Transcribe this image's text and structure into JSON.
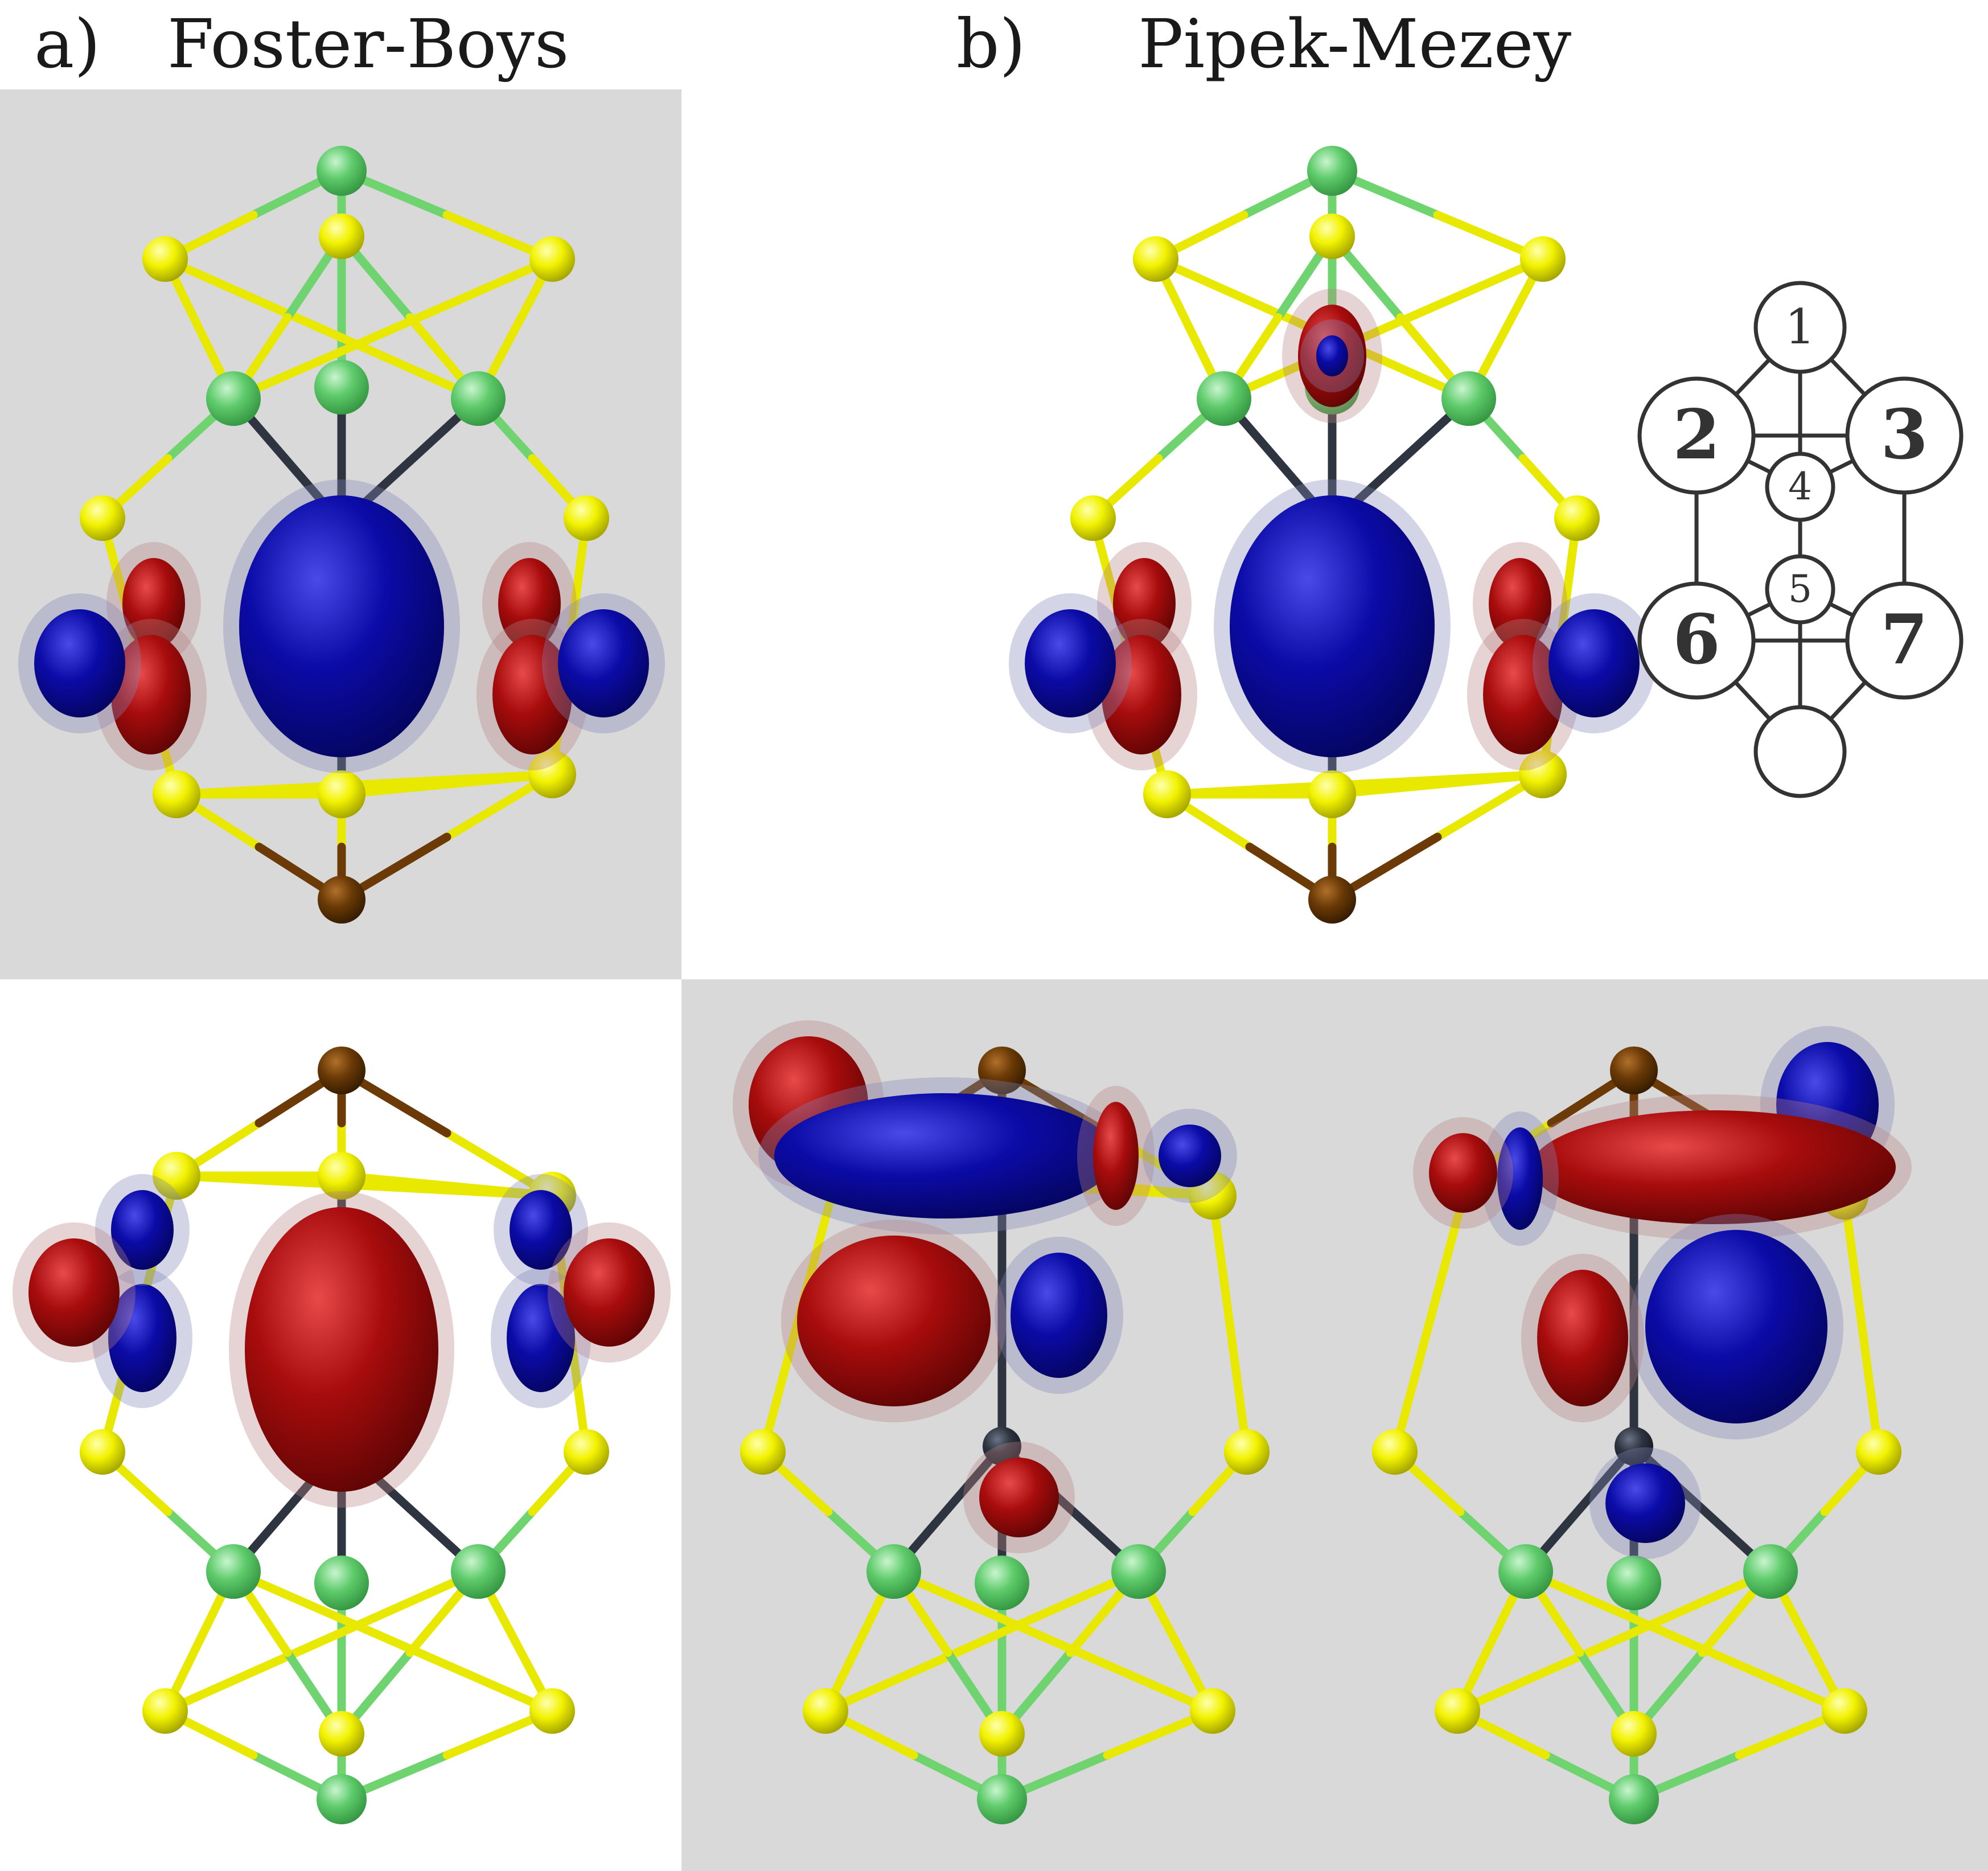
{
  "captions": {
    "a_label": "a)",
    "a_title": "Foster-Boys",
    "b_label": "b)",
    "b_title": "Pipek-Mezey"
  },
  "colors": {
    "panel_background": "#d9d9d9",
    "bond_green": "#6fd46f",
    "bond_yellow": "#e8e800",
    "atom_green": "#5ecb6a",
    "atom_yellow": "#f2f200",
    "atom_brown": "#6b3a06",
    "atom_dark": "#2e3440",
    "lobe_blue": "#0b0ba8",
    "lobe_red": "#a80c0c",
    "lobe_halo_blue": "#8088b8",
    "lobe_halo_red": "#b88080"
  },
  "schematic": {
    "node_labels": [
      "1",
      "2",
      "3",
      "4",
      "5",
      "6",
      "7",
      ""
    ]
  },
  "molecules": [
    {
      "id": "fb-top",
      "orientation": "up",
      "density": "centered-blue"
    },
    {
      "id": "fb-bottom",
      "orientation": "down",
      "density": "centered-red"
    },
    {
      "id": "pm-top",
      "orientation": "up",
      "density": "centered-blue-pm"
    },
    {
      "id": "pm-bottom-left",
      "orientation": "down",
      "density": "twisted-blue"
    },
    {
      "id": "pm-bottom-right",
      "orientation": "down",
      "density": "twisted-red"
    }
  ]
}
